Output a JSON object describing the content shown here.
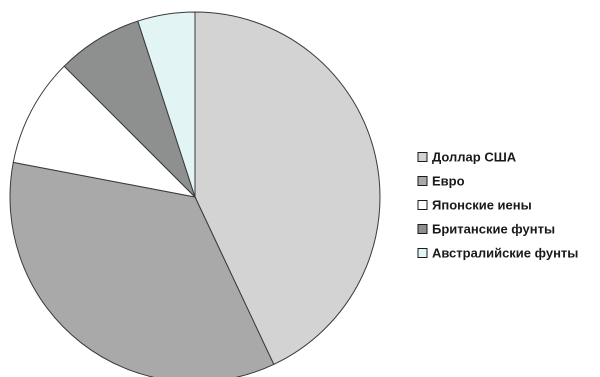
{
  "chart_data": {
    "type": "pie",
    "title": "",
    "legend_position": "right",
    "categories": [
      "Доллар США",
      "Евро",
      "Японские иены",
      "Британские фунты",
      "Австралийские фунты"
    ],
    "values": [
      43,
      35,
      9.5,
      7.5,
      5
    ],
    "colors": [
      "#d3d3d3",
      "#a9a9a9",
      "#ffffff",
      "#8e9090",
      "#e3f4f4"
    ],
    "outline_color": "#3a3a3a",
    "start_angle": "12 o'clock",
    "direction": "clockwise"
  }
}
